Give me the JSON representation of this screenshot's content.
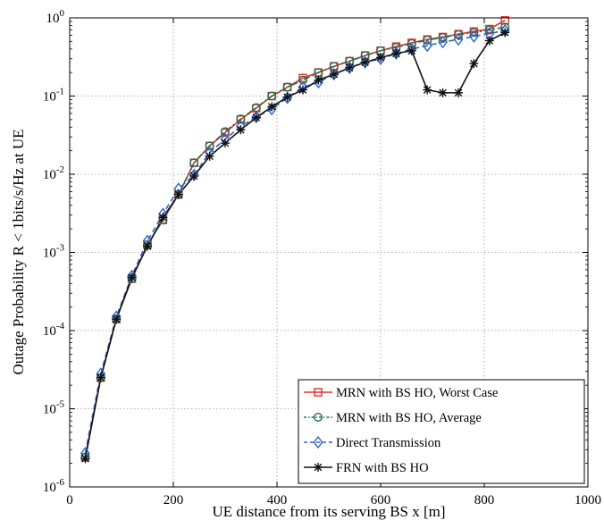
{
  "chart_data": {
    "type": "line",
    "xlabel": "UE distance from its serving BS x [m]",
    "ylabel": "Outage Probability R < 1bits/s/Hz at UE",
    "xlim": [
      0,
      1000
    ],
    "ylim": [
      1e-06,
      1
    ],
    "yscale": "log",
    "grid": true,
    "legend_position": "bottom-right",
    "xticks": [
      0,
      200,
      400,
      600,
      800,
      1000
    ],
    "yticks": [
      {
        "value": 1e-06,
        "base": "10",
        "exp": "-6"
      },
      {
        "value": 1e-05,
        "base": "10",
        "exp": "-5"
      },
      {
        "value": 0.0001,
        "base": "10",
        "exp": "-4"
      },
      {
        "value": 0.001,
        "base": "10",
        "exp": "-3"
      },
      {
        "value": 0.01,
        "base": "10",
        "exp": "-2"
      },
      {
        "value": 0.1,
        "base": "10",
        "exp": "-1"
      },
      {
        "value": 1,
        "base": "10",
        "exp": "0"
      }
    ],
    "x": [
      30,
      60,
      90,
      120,
      150,
      180,
      210,
      240,
      270,
      300,
      330,
      360,
      390,
      420,
      450,
      480,
      510,
      540,
      570,
      600,
      630,
      660,
      690,
      720,
      750,
      780,
      810,
      840
    ],
    "series": [
      {
        "name": "MRN with BS HO, Worst Case",
        "color": "#e8302a",
        "marker": "square",
        "dash": "solid",
        "values": [
          2.4e-06,
          2.5e-05,
          0.00014,
          0.00046,
          0.00125,
          0.0026,
          0.0055,
          0.014,
          0.023,
          0.034,
          0.05,
          0.07,
          0.1,
          0.13,
          0.17,
          0.2,
          0.24,
          0.28,
          0.33,
          0.38,
          0.43,
          0.48,
          0.53,
          0.57,
          0.62,
          0.67,
          0.72,
          0.93
        ]
      },
      {
        "name": "MRN with BS HO, Average",
        "color": "#1f6e4c",
        "marker": "circle",
        "dash": "dashdot",
        "values": [
          2.4e-06,
          2.5e-05,
          0.00014,
          0.00046,
          0.00125,
          0.0026,
          0.0055,
          0.014,
          0.023,
          0.035,
          0.051,
          0.071,
          0.1,
          0.13,
          0.16,
          0.2,
          0.24,
          0.28,
          0.33,
          0.38,
          0.42,
          0.47,
          0.52,
          0.56,
          0.61,
          0.65,
          0.7,
          0.76
        ]
      },
      {
        "name": "Direct Transmission",
        "color": "#2a64c8",
        "marker": "diamond",
        "dash": "dashed",
        "values": [
          2.7e-06,
          2.8e-05,
          0.00015,
          0.0005,
          0.0014,
          0.0031,
          0.0065,
          0.0098,
          0.019,
          0.028,
          0.041,
          0.054,
          0.068,
          0.095,
          0.13,
          0.15,
          0.19,
          0.23,
          0.27,
          0.3,
          0.35,
          0.4,
          0.44,
          0.49,
          0.53,
          0.58,
          0.63,
          0.69
        ]
      },
      {
        "name": "FRN with BS HO",
        "color": "#111111",
        "marker": "asterisk",
        "dash": "solid",
        "values": [
          2.3e-06,
          2.5e-05,
          0.00014,
          0.00048,
          0.0012,
          0.0028,
          0.0055,
          0.0095,
          0.017,
          0.025,
          0.037,
          0.053,
          0.073,
          0.097,
          0.12,
          0.16,
          0.19,
          0.23,
          0.27,
          0.31,
          0.35,
          0.38,
          0.12,
          0.11,
          0.11,
          0.26,
          0.51,
          0.65
        ]
      }
    ]
  }
}
